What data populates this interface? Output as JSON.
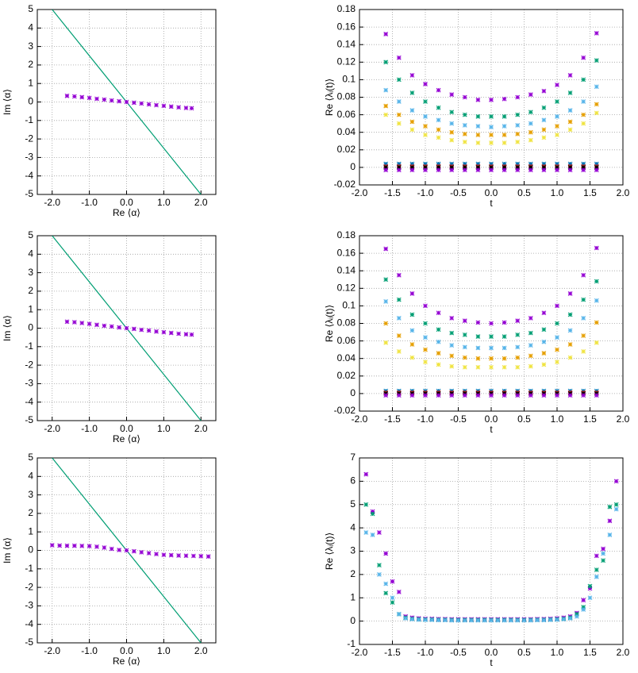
{
  "chart_data": [
    {
      "type": "scatter",
      "xlabel": "Re ⟨α⟩",
      "ylabel": "Im ⟨α⟩",
      "grid": true,
      "xlim": [
        -2.4,
        2.4
      ],
      "ylim": [
        -5,
        5
      ],
      "xticks": [
        {
          "value": -2,
          "label": "-2.0"
        },
        {
          "value": -1,
          "label": "-1.0"
        },
        {
          "value": 0,
          "label": "0.0"
        },
        {
          "value": 1,
          "label": "1.0"
        },
        {
          "value": 2,
          "label": "2.0"
        }
      ],
      "yticks": [
        -5,
        -4,
        -3,
        -2,
        -1,
        0,
        1,
        2,
        3,
        4,
        5
      ],
      "series": [
        {
          "color": "#009e73",
          "style": "line",
          "x": [
            -2,
            2
          ],
          "values": [
            5,
            -5
          ]
        },
        {
          "color": "#9400d3",
          "style": "points",
          "x": [
            -1.6,
            -1.4,
            -1.2,
            -1.0,
            -0.8,
            -0.6,
            -0.4,
            -0.2,
            0,
            0.2,
            0.4,
            0.6,
            0.8,
            1.0,
            1.2,
            1.4,
            1.6,
            1.75
          ],
          "values": [
            0.33,
            0.3,
            0.26,
            0.22,
            0.17,
            0.13,
            0.08,
            0.04,
            0,
            -0.04,
            -0.08,
            -0.13,
            -0.17,
            -0.21,
            -0.25,
            -0.29,
            -0.32,
            -0.34
          ]
        }
      ]
    },
    {
      "type": "scatter",
      "xlabel": "t",
      "ylabel": "Re ⟨λᵢ(t)⟩",
      "grid": true,
      "xlim": [
        -2,
        2
      ],
      "ylim": [
        -0.02,
        0.18
      ],
      "xticks": [
        {
          "value": -2,
          "label": "-2.0"
        },
        {
          "value": -1.5,
          "label": "-1.5"
        },
        {
          "value": -1,
          "label": "-1.0"
        },
        {
          "value": -0.5,
          "label": "-0.5"
        },
        {
          "value": 0,
          "label": "0.0"
        },
        {
          "value": 0.5,
          "label": "0.5"
        },
        {
          "value": 1,
          "label": "1.0"
        },
        {
          "value": 1.5,
          "label": "1.5"
        },
        {
          "value": 2,
          "label": "2.0"
        }
      ],
      "yticks": [
        -0.02,
        0,
        0.02,
        0.04,
        0.06,
        0.08,
        0.1,
        0.12,
        0.14,
        0.16,
        0.18
      ],
      "x": [
        -1.6,
        -1.4,
        -1.2,
        -1.0,
        -0.8,
        -0.6,
        -0.4,
        -0.2,
        0,
        0.2,
        0.4,
        0.6,
        0.8,
        1.0,
        1.2,
        1.4,
        1.6
      ],
      "series": [
        {
          "color": "#9400d3",
          "style": "points",
          "values": [
            0.152,
            0.125,
            0.105,
            0.095,
            0.088,
            0.083,
            0.08,
            0.077,
            0.077,
            0.078,
            0.08,
            0.083,
            0.087,
            0.094,
            0.105,
            0.125,
            0.153
          ]
        },
        {
          "color": "#009e73",
          "style": "points",
          "values": [
            0.12,
            0.1,
            0.085,
            0.075,
            0.068,
            0.063,
            0.06,
            0.058,
            0.058,
            0.058,
            0.06,
            0.063,
            0.068,
            0.075,
            0.085,
            0.1,
            0.122
          ]
        },
        {
          "color": "#56b4e9",
          "style": "points",
          "values": [
            0.088,
            0.075,
            0.065,
            0.058,
            0.054,
            0.05,
            0.048,
            0.047,
            0.046,
            0.047,
            0.048,
            0.05,
            0.054,
            0.058,
            0.065,
            0.075,
            0.092
          ]
        },
        {
          "color": "#e69f00",
          "style": "points",
          "values": [
            0.07,
            0.06,
            0.052,
            0.047,
            0.043,
            0.04,
            0.038,
            0.037,
            0.037,
            0.037,
            0.038,
            0.04,
            0.043,
            0.047,
            0.052,
            0.06,
            0.072
          ]
        },
        {
          "color": "#f0e442",
          "style": "points",
          "values": [
            0.06,
            0.05,
            0.043,
            0.037,
            0.034,
            0.031,
            0.029,
            0.028,
            0.028,
            0.028,
            0.029,
            0.031,
            0.034,
            0.037,
            0.043,
            0.05,
            0.062
          ]
        },
        {
          "color": "#0072b2",
          "style": "points",
          "values": [
            0.004,
            0.004,
            0.004,
            0.004,
            0.004,
            0.004,
            0.004,
            0.004,
            0.004,
            0.004,
            0.004,
            0.004,
            0.004,
            0.004,
            0.004,
            0.004,
            0.004
          ]
        },
        {
          "color": "#e51e10",
          "style": "points",
          "values": [
            0.001,
            0.001,
            0.001,
            0.001,
            0.001,
            0.001,
            0.001,
            0.001,
            0.001,
            0.001,
            0.001,
            0.001,
            0.001,
            0.001,
            0.001,
            0.001,
            0.001
          ]
        },
        {
          "color": "#000000",
          "style": "points",
          "values": [
            0,
            0,
            0,
            0,
            0,
            0,
            0,
            0,
            0,
            0,
            0,
            0,
            0,
            0,
            0,
            0,
            0
          ]
        },
        {
          "color": "#9400d3",
          "style": "points",
          "values": [
            -0.003,
            -0.003,
            -0.003,
            -0.003,
            -0.003,
            -0.003,
            -0.003,
            -0.003,
            -0.003,
            -0.003,
            -0.003,
            -0.003,
            -0.003,
            -0.003,
            -0.003,
            -0.003,
            -0.003
          ]
        }
      ]
    },
    {
      "type": "scatter",
      "xlabel": "Re ⟨α⟩",
      "ylabel": "Im ⟨α⟩",
      "grid": true,
      "xlim": [
        -2.4,
        2.4
      ],
      "ylim": [
        -5,
        5
      ],
      "xticks": [
        {
          "value": -2,
          "label": "-2.0"
        },
        {
          "value": -1,
          "label": "-1.0"
        },
        {
          "value": 0,
          "label": "0.0"
        },
        {
          "value": 1,
          "label": "1.0"
        },
        {
          "value": 2,
          "label": "2.0"
        }
      ],
      "yticks": [
        -5,
        -4,
        -3,
        -2,
        -1,
        0,
        1,
        2,
        3,
        4,
        5
      ],
      "series": [
        {
          "color": "#009e73",
          "style": "line",
          "x": [
            -2,
            2
          ],
          "values": [
            5,
            -5
          ]
        },
        {
          "color": "#9400d3",
          "style": "points",
          "x": [
            -1.6,
            -1.4,
            -1.2,
            -1.0,
            -0.8,
            -0.6,
            -0.4,
            -0.2,
            0,
            0.2,
            0.4,
            0.6,
            0.8,
            1.0,
            1.2,
            1.4,
            1.6,
            1.75
          ],
          "values": [
            0.35,
            0.32,
            0.28,
            0.23,
            0.18,
            0.13,
            0.09,
            0.04,
            0,
            -0.04,
            -0.09,
            -0.13,
            -0.18,
            -0.22,
            -0.26,
            -0.3,
            -0.33,
            -0.35
          ]
        }
      ]
    },
    {
      "type": "scatter",
      "xlabel": "t",
      "ylabel": "Re ⟨λᵢ(t)⟩",
      "grid": true,
      "xlim": [
        -2,
        2
      ],
      "ylim": [
        -0.02,
        0.18
      ],
      "xticks": [
        {
          "value": -2,
          "label": "-2.0"
        },
        {
          "value": -1.5,
          "label": "-1.5"
        },
        {
          "value": -1,
          "label": "-1.0"
        },
        {
          "value": -0.5,
          "label": "-0.5"
        },
        {
          "value": 0,
          "label": "0.0"
        },
        {
          "value": 0.5,
          "label": "0.5"
        },
        {
          "value": 1,
          "label": "1.0"
        },
        {
          "value": 1.5,
          "label": "1.5"
        },
        {
          "value": 2,
          "label": "2.0"
        }
      ],
      "yticks": [
        -0.02,
        0,
        0.02,
        0.04,
        0.06,
        0.08,
        0.1,
        0.12,
        0.14,
        0.16,
        0.18
      ],
      "x": [
        -1.6,
        -1.4,
        -1.2,
        -1.0,
        -0.8,
        -0.6,
        -0.4,
        -0.2,
        0,
        0.2,
        0.4,
        0.6,
        0.8,
        1.0,
        1.2,
        1.4,
        1.6
      ],
      "series": [
        {
          "color": "#9400d3",
          "style": "points",
          "values": [
            0.165,
            0.135,
            0.114,
            0.1,
            0.092,
            0.086,
            0.083,
            0.081,
            0.08,
            0.081,
            0.083,
            0.086,
            0.092,
            0.1,
            0.114,
            0.135,
            0.166
          ]
        },
        {
          "color": "#009e73",
          "style": "points",
          "values": [
            0.13,
            0.107,
            0.09,
            0.08,
            0.073,
            0.069,
            0.067,
            0.065,
            0.065,
            0.065,
            0.067,
            0.069,
            0.073,
            0.08,
            0.09,
            0.107,
            0.128
          ]
        },
        {
          "color": "#56b4e9",
          "style": "points",
          "values": [
            0.105,
            0.086,
            0.072,
            0.064,
            0.059,
            0.055,
            0.053,
            0.052,
            0.052,
            0.052,
            0.053,
            0.055,
            0.059,
            0.064,
            0.072,
            0.086,
            0.106
          ]
        },
        {
          "color": "#e69f00",
          "style": "points",
          "values": [
            0.08,
            0.066,
            0.056,
            0.05,
            0.046,
            0.043,
            0.041,
            0.04,
            0.04,
            0.04,
            0.041,
            0.043,
            0.046,
            0.05,
            0.056,
            0.066,
            0.081
          ]
        },
        {
          "color": "#f0e442",
          "style": "points",
          "values": [
            0.058,
            0.048,
            0.041,
            0.036,
            0.033,
            0.031,
            0.03,
            0.03,
            0.03,
            0.03,
            0.03,
            0.031,
            0.033,
            0.036,
            0.041,
            0.048,
            0.058
          ]
        },
        {
          "color": "#0072b2",
          "style": "points",
          "values": [
            0.003,
            0.003,
            0.003,
            0.003,
            0.003,
            0.003,
            0.003,
            0.003,
            0.003,
            0.003,
            0.003,
            0.003,
            0.003,
            0.003,
            0.003,
            0.003,
            0.003
          ]
        },
        {
          "color": "#e51e10",
          "style": "points",
          "values": [
            0.001,
            0.001,
            0.001,
            0.001,
            0.001,
            0.001,
            0.001,
            0.001,
            0.001,
            0.001,
            0.001,
            0.001,
            0.001,
            0.001,
            0.001,
            0.001,
            0.001
          ]
        },
        {
          "color": "#000000",
          "style": "points",
          "values": [
            0,
            0,
            0,
            0,
            0,
            0,
            0,
            0,
            0,
            0,
            0,
            0,
            0,
            0,
            0,
            0,
            0
          ]
        },
        {
          "color": "#9400d3",
          "style": "points",
          "values": [
            -0.002,
            -0.002,
            -0.002,
            -0.002,
            -0.002,
            -0.002,
            -0.002,
            -0.002,
            -0.002,
            -0.002,
            -0.002,
            -0.002,
            -0.002,
            -0.002,
            -0.002,
            -0.002,
            -0.002
          ]
        }
      ]
    },
    {
      "type": "scatter",
      "xlabel": "Re ⟨α⟩",
      "ylabel": "Im ⟨α⟩",
      "grid": true,
      "xlim": [
        -2.4,
        2.4
      ],
      "ylim": [
        -5,
        5
      ],
      "xticks": [
        {
          "value": -2,
          "label": "-2.0"
        },
        {
          "value": -1,
          "label": "-1.0"
        },
        {
          "value": 0,
          "label": "0.0"
        },
        {
          "value": 1,
          "label": "1.0"
        },
        {
          "value": 2,
          "label": "2.0"
        }
      ],
      "yticks": [
        -5,
        -4,
        -3,
        -2,
        -1,
        0,
        1,
        2,
        3,
        4,
        5
      ],
      "series": [
        {
          "color": "#009e73",
          "style": "line",
          "x": [
            -2,
            2
          ],
          "values": [
            5,
            -5
          ]
        },
        {
          "color": "#9400d3",
          "style": "points",
          "x": [
            -2.0,
            -1.8,
            -1.6,
            -1.4,
            -1.2,
            -1.0,
            -0.8,
            -0.6,
            -0.4,
            -0.2,
            0,
            0.2,
            0.4,
            0.6,
            0.8,
            1.0,
            1.2,
            1.4,
            1.6,
            1.8,
            2.0,
            2.2
          ],
          "values": [
            0.28,
            0.26,
            0.25,
            0.25,
            0.24,
            0.23,
            0.2,
            0.15,
            0.08,
            0.02,
            0,
            -0.05,
            -0.1,
            -0.15,
            -0.2,
            -0.24,
            -0.26,
            -0.28,
            -0.29,
            -0.3,
            -0.31,
            -0.33
          ]
        }
      ]
    },
    {
      "type": "scatter",
      "xlabel": "t",
      "ylabel": "Re ⟨λᵢ(t)⟩",
      "grid": true,
      "xlim": [
        -2,
        2
      ],
      "ylim": [
        -1,
        7
      ],
      "xticks": [
        {
          "value": -2,
          "label": "-2.0"
        },
        {
          "value": -1.5,
          "label": "-1.5"
        },
        {
          "value": -1,
          "label": "-1.0"
        },
        {
          "value": -0.5,
          "label": "-0.5"
        },
        {
          "value": 0,
          "label": "0.0"
        },
        {
          "value": 0.5,
          "label": "0.5"
        },
        {
          "value": 1,
          "label": "1.0"
        },
        {
          "value": 1.5,
          "label": "1.5"
        },
        {
          "value": 2,
          "label": "2.0"
        }
      ],
      "yticks": [
        -1,
        0,
        1,
        2,
        3,
        4,
        5,
        6,
        7
      ],
      "x": [
        -1.9,
        -1.8,
        -1.7,
        -1.6,
        -1.5,
        -1.4,
        -1.3,
        -1.2,
        -1.1,
        -1.0,
        -0.9,
        -0.8,
        -0.7,
        -0.6,
        -0.5,
        -0.4,
        -0.3,
        -0.2,
        -0.1,
        0,
        0.1,
        0.2,
        0.3,
        0.4,
        0.5,
        0.6,
        0.7,
        0.8,
        0.9,
        1.0,
        1.1,
        1.2,
        1.3,
        1.4,
        1.5,
        1.6,
        1.7,
        1.8,
        1.9
      ],
      "series": [
        {
          "color": "#9400d3",
          "style": "points",
          "values": [
            6.3,
            4.7,
            3.8,
            2.9,
            1.7,
            1.25,
            0.2,
            0.15,
            0.12,
            0.1,
            0.1,
            0.09,
            0.09,
            0.08,
            0.08,
            0.08,
            0.08,
            0.08,
            0.08,
            0.08,
            0.08,
            0.08,
            0.08,
            0.08,
            0.08,
            0.08,
            0.09,
            0.09,
            0.1,
            0.12,
            0.15,
            0.2,
            0.35,
            0.9,
            1.4,
            2.8,
            3.1,
            4.3,
            6.0
          ]
        },
        {
          "color": "#009e73",
          "style": "points",
          "values": [
            5.0,
            4.6,
            2.4,
            1.2,
            0.8,
            0.3,
            0.15,
            0.1,
            0.08,
            0.07,
            0.07,
            0.06,
            0.06,
            0.05,
            0.05,
            0.05,
            0.05,
            0.05,
            0.05,
            0.05,
            0.05,
            0.05,
            0.05,
            0.05,
            0.05,
            0.05,
            0.06,
            0.06,
            0.07,
            0.08,
            0.1,
            0.15,
            0.3,
            0.6,
            1.5,
            2.2,
            2.6,
            4.9,
            5.0
          ]
        },
        {
          "color": "#56b4e9",
          "style": "points",
          "values": [
            3.8,
            3.7,
            2.0,
            1.6,
            1.0,
            0.3,
            0.12,
            0.08,
            0.06,
            0.05,
            0.05,
            0.04,
            0.04,
            0.03,
            0.03,
            0.03,
            0.03,
            0.03,
            0.03,
            0.03,
            0.03,
            0.03,
            0.03,
            0.03,
            0.03,
            0.03,
            0.04,
            0.04,
            0.05,
            0.06,
            0.08,
            0.12,
            0.2,
            0.5,
            1.0,
            1.9,
            2.9,
            3.7,
            4.8
          ]
        }
      ]
    }
  ]
}
